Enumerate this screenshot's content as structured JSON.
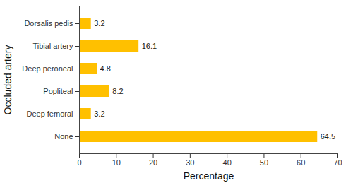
{
  "chart_data": {
    "type": "bar",
    "orientation": "horizontal",
    "x_label": "Percentage",
    "y_label": "Occluded artery",
    "categories": [
      "Dorsalis pedis",
      "Tibial artery",
      "Deep peroneal",
      "Popliteal",
      "Deep femoral",
      "None"
    ],
    "values": [
      3.2,
      16.1,
      4.8,
      8.2,
      3.2,
      64.5
    ],
    "color": "#FFC000",
    "xlim": [
      0,
      70
    ],
    "xticks": [
      0,
      10,
      20,
      30,
      40,
      50,
      60,
      70
    ],
    "grid": false,
    "data_labels": true
  }
}
